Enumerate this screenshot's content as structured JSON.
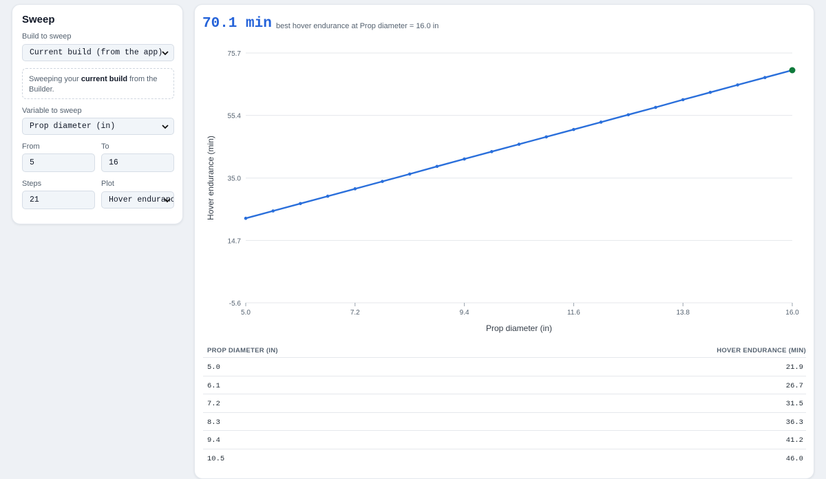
{
  "sidebar": {
    "title": "Sweep",
    "build_label": "Build to sweep",
    "build_value": "Current build (from the app)",
    "note_prefix": "Sweeping your ",
    "note_bold": "current build",
    "note_suffix": " from the Builder.",
    "variable_label": "Variable to sweep",
    "variable_value": "Prop diameter (in)",
    "from_label": "From",
    "from_value": "5",
    "to_label": "To",
    "to_value": "16",
    "steps_label": "Steps",
    "steps_value": "21",
    "plot_label": "Plot",
    "plot_value": "Hover endurance"
  },
  "result": {
    "value": "70.1 min",
    "caption": "best hover endurance at Prop diameter = 16.0 in"
  },
  "chart_data": {
    "type": "line",
    "xlabel": "Prop diameter (in)",
    "ylabel": "Hover endurance (min)",
    "xlim": [
      5.0,
      16.0
    ],
    "ylim": [
      -5.6,
      75.7
    ],
    "x_ticks": [
      "5.0",
      "7.2",
      "9.4",
      "11.6",
      "13.8",
      "16.0"
    ],
    "y_ticks": [
      "75.7",
      "55.4",
      "35.0",
      "14.7",
      "-5.6"
    ],
    "grid": true,
    "line_color": "#2a6fdb",
    "best_color": "#0f7a3c",
    "x": [
      5.0,
      5.55,
      6.1,
      6.65,
      7.2,
      7.75,
      8.3,
      8.85,
      9.4,
      9.95,
      10.5,
      11.05,
      11.6,
      12.15,
      12.7,
      13.25,
      13.8,
      14.35,
      14.9,
      15.45,
      16.0
    ],
    "y": [
      21.9,
      24.3,
      26.7,
      29.1,
      31.5,
      33.9,
      36.3,
      38.8,
      41.2,
      43.6,
      46.0,
      48.4,
      50.8,
      53.2,
      55.6,
      58.0,
      60.5,
      62.9,
      65.3,
      67.7,
      70.1
    ]
  },
  "table": {
    "headers": [
      "PROP DIAMETER (IN)",
      "HOVER ENDURANCE (MIN)"
    ],
    "rows": [
      [
        "5.0",
        "21.9"
      ],
      [
        "6.1",
        "26.7"
      ],
      [
        "7.2",
        "31.5"
      ],
      [
        "8.3",
        "36.3"
      ],
      [
        "9.4",
        "41.2"
      ],
      [
        "10.5",
        "46.0"
      ]
    ]
  }
}
